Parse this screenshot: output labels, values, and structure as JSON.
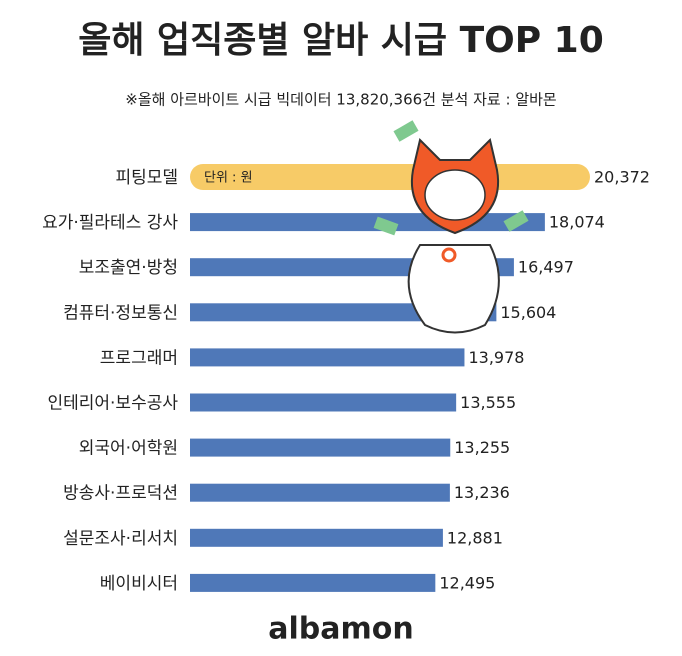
{
  "chart_data": {
    "type": "bar",
    "orientation": "horizontal",
    "title": "올해 업직종별 알바 시급 TOP 10",
    "subtitle": "※올해 아르바이트 시급 빅데이터 13,820,366건 분석 자료 : 알바몬",
    "unit_note": "단위 : 원",
    "brand": "albamon",
    "categories": [
      "피팅모델",
      "요가·필라테스 강사",
      "보조출연·방청",
      "컴퓨터·정보통신",
      "프로그래머",
      "인테리어·보수공사",
      "외국어·어학원",
      "방송사·프로덕션",
      "설문조사·리서치",
      "베이비시터"
    ],
    "values": [
      20372,
      18074,
      16497,
      15604,
      13978,
      13555,
      13255,
      13236,
      12881,
      12495
    ],
    "value_labels": [
      "20,372",
      "18,074",
      "16,497",
      "15,604",
      "13,978",
      "13,555",
      "13,255",
      "13,236",
      "12,881",
      "12,495"
    ],
    "colors": [
      "#f6c24c",
      "#4f78b8",
      "#4f78b8",
      "#4f78b8",
      "#4f78b8",
      "#4f78b8",
      "#4f78b8",
      "#4f78b8",
      "#4f78b8",
      "#4f78b8"
    ]
  }
}
